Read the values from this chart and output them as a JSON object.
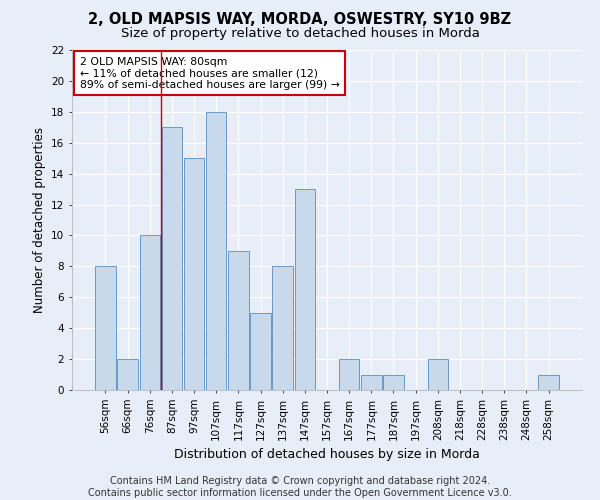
{
  "title1": "2, OLD MAPSIS WAY, MORDA, OSWESTRY, SY10 9BZ",
  "title2": "Size of property relative to detached houses in Morda",
  "xlabel": "Distribution of detached houses by size in Morda",
  "ylabel": "Number of detached properties",
  "footer1": "Contains HM Land Registry data © Crown copyright and database right 2024.",
  "footer2": "Contains public sector information licensed under the Open Government Licence v3.0.",
  "annotation_line1": "2 OLD MAPSIS WAY: 80sqm",
  "annotation_line2": "← 11% of detached houses are smaller (12)",
  "annotation_line3": "89% of semi-detached houses are larger (99) →",
  "bar_labels": [
    "56sqm",
    "66sqm",
    "76sqm",
    "87sqm",
    "97sqm",
    "107sqm",
    "117sqm",
    "127sqm",
    "137sqm",
    "147sqm",
    "157sqm",
    "167sqm",
    "177sqm",
    "187sqm",
    "197sqm",
    "208sqm",
    "218sqm",
    "228sqm",
    "238sqm",
    "248sqm",
    "258sqm"
  ],
  "bar_values": [
    8,
    2,
    10,
    17,
    15,
    18,
    9,
    5,
    8,
    13,
    0,
    2,
    1,
    1,
    0,
    2,
    0,
    0,
    0,
    0,
    1
  ],
  "bar_color": "#c9d9ec",
  "bar_edge_color": "#5a8fc0",
  "property_line_x": 2.5,
  "ylim": [
    0,
    22
  ],
  "yticks": [
    0,
    2,
    4,
    6,
    8,
    10,
    12,
    14,
    16,
    18,
    20,
    22
  ],
  "bg_color": "#e8eef8",
  "grid_color": "#ffffff",
  "annotation_box_facecolor": "#ffffff",
  "annotation_box_edge": "#cc0000",
  "title1_fontsize": 10.5,
  "title2_fontsize": 9.5,
  "ylabel_fontsize": 8.5,
  "xlabel_fontsize": 9,
  "tick_fontsize": 7.5,
  "annotation_fontsize": 7.8,
  "footer_fontsize": 7
}
